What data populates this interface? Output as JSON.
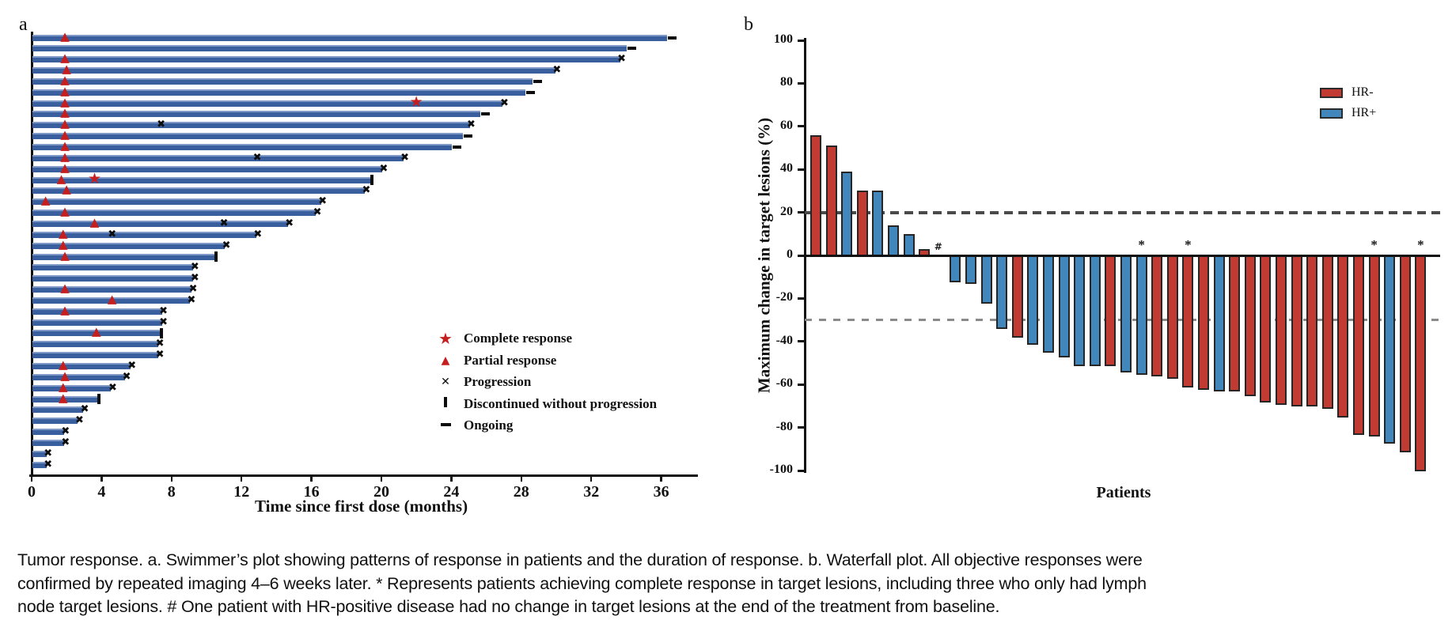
{
  "figure": {
    "panel_a_label": "a",
    "panel_b_label": "b",
    "caption_lines": [
      "Tumor response. a. Swimmer’s plot showing patterns of response in patients and the duration of response. b. Waterfall plot. All objective responses were",
      "confirmed by repeated imaging 4–6 weeks later. * Represents patients achieving complete response in target lesions, including three who only had lymph",
      "node target lesions. # One patient with HR-positive disease had no change in target lesions at the end of the treatment from baseline."
    ]
  },
  "colors": {
    "swimmer_bar": "#3a5f9e",
    "hr_negative": "#c23b32",
    "hr_positive": "#4287bb",
    "marker_red": "#c41e1e",
    "marker_black": "#0d0d0d",
    "dash_plus20": "#4a4a4a",
    "dash_minus30": "#8a8a8a"
  },
  "chart_data": [
    {
      "id": "swimmer",
      "type": "bar",
      "orientation": "horizontal",
      "xlabel": "Time since first dose (months)",
      "x_ticks": [
        0,
        4,
        8,
        12,
        16,
        20,
        24,
        28,
        32,
        36
      ],
      "xlim": [
        0,
        38
      ],
      "grid": false,
      "legend_position": "right-middle",
      "legend": [
        {
          "symbol": "star",
          "label": "Complete response"
        },
        {
          "symbol": "triangle",
          "label": "Partial response"
        },
        {
          "symbol": "x",
          "label": "Progression"
        },
        {
          "symbol": "bar",
          "label": "Discontinued without progression"
        },
        {
          "symbol": "dash",
          "label": "Ongoing"
        }
      ],
      "patients": [
        {
          "duration_months": 36.3,
          "end": "ongoing",
          "partial_response_at": [
            1.9
          ]
        },
        {
          "duration_months": 34.0,
          "end": "ongoing"
        },
        {
          "duration_months": 33.6,
          "end": "progression",
          "partial_response_at": [
            1.9
          ]
        },
        {
          "duration_months": 29.9,
          "end": "progression",
          "partial_response_at": [
            2.0
          ]
        },
        {
          "duration_months": 28.6,
          "end": "ongoing",
          "partial_response_at": [
            1.9
          ]
        },
        {
          "duration_months": 28.2,
          "end": "ongoing",
          "partial_response_at": [
            1.9
          ]
        },
        {
          "duration_months": 26.9,
          "end": "progression",
          "partial_response_at": [
            1.9
          ],
          "complete_response_at": [
            22.0
          ]
        },
        {
          "duration_months": 25.6,
          "end": "ongoing",
          "partial_response_at": [
            1.9
          ]
        },
        {
          "duration_months": 25.0,
          "end": "progression",
          "partial_response_at": [
            1.9
          ],
          "progression_at": [
            7.4
          ]
        },
        {
          "duration_months": 24.6,
          "end": "ongoing",
          "partial_response_at": [
            1.9
          ]
        },
        {
          "duration_months": 24.0,
          "end": "ongoing",
          "partial_response_at": [
            1.9
          ]
        },
        {
          "duration_months": 21.2,
          "end": "progression",
          "partial_response_at": [
            1.9
          ],
          "progression_at": [
            12.9
          ]
        },
        {
          "duration_months": 20.0,
          "end": "progression",
          "partial_response_at": [
            1.9
          ]
        },
        {
          "duration_months": 19.3,
          "end": "discontinued",
          "partial_response_at": [
            1.7
          ],
          "complete_response_at": [
            3.6
          ]
        },
        {
          "duration_months": 19.0,
          "end": "progression",
          "partial_response_at": [
            2.0
          ]
        },
        {
          "duration_months": 16.5,
          "end": "progression",
          "partial_response_at": [
            0.8
          ]
        },
        {
          "duration_months": 16.2,
          "end": "progression",
          "partial_response_at": [
            1.9
          ]
        },
        {
          "duration_months": 14.6,
          "end": "progression",
          "partial_response_at": [
            3.6
          ],
          "progression_at": [
            11.0
          ]
        },
        {
          "duration_months": 12.8,
          "end": "progression",
          "partial_response_at": [
            1.8
          ],
          "progression_at": [
            4.6
          ]
        },
        {
          "duration_months": 11.0,
          "end": "progression",
          "partial_response_at": [
            1.8
          ]
        },
        {
          "duration_months": 10.4,
          "end": "discontinued",
          "partial_response_at": [
            1.9
          ]
        },
        {
          "duration_months": 9.2,
          "end": "progression"
        },
        {
          "duration_months": 9.2,
          "end": "progression"
        },
        {
          "duration_months": 9.1,
          "end": "progression",
          "partial_response_at": [
            1.9
          ]
        },
        {
          "duration_months": 9.0,
          "end": "progression",
          "partial_response_at": [
            4.6
          ]
        },
        {
          "duration_months": 7.4,
          "end": "progression",
          "partial_response_at": [
            1.9
          ]
        },
        {
          "duration_months": 7.4,
          "end": "progression"
        },
        {
          "duration_months": 7.3,
          "end": "discontinued",
          "partial_response_at": [
            3.7
          ]
        },
        {
          "duration_months": 7.2,
          "end": "progression"
        },
        {
          "duration_months": 7.2,
          "end": "progression"
        },
        {
          "duration_months": 5.6,
          "end": "progression",
          "partial_response_at": [
            1.8
          ]
        },
        {
          "duration_months": 5.3,
          "end": "progression",
          "partial_response_at": [
            1.9
          ]
        },
        {
          "duration_months": 4.5,
          "end": "progression",
          "partial_response_at": [
            1.8
          ]
        },
        {
          "duration_months": 3.7,
          "end": "discontinued",
          "partial_response_at": [
            1.8
          ]
        },
        {
          "duration_months": 2.9,
          "end": "progression"
        },
        {
          "duration_months": 2.6,
          "end": "progression"
        },
        {
          "duration_months": 1.8,
          "end": "progression"
        },
        {
          "duration_months": 1.8,
          "end": "progression"
        },
        {
          "duration_months": 0.8,
          "end": "progression"
        },
        {
          "duration_months": 0.8,
          "end": "progression"
        }
      ]
    },
    {
      "id": "waterfall",
      "type": "bar",
      "ylabel": "Maximum change in target lesions (%)",
      "xlabel": "Patients",
      "ylim": [
        -100,
        100
      ],
      "y_ticks": [
        100,
        80,
        60,
        40,
        20,
        0,
        -20,
        -40,
        -60,
        -80,
        -100
      ],
      "reference_lines_pct": [
        20,
        -30
      ],
      "grid": false,
      "legend_position": "top-right",
      "legend": [
        {
          "label": "HR-",
          "color_key": "hr_negative"
        },
        {
          "label": "HR+",
          "color_key": "hr_positive"
        }
      ],
      "values": [
        {
          "change_pct": 56,
          "hr": "HR-"
        },
        {
          "change_pct": 51,
          "hr": "HR-"
        },
        {
          "change_pct": 39,
          "hr": "HR+"
        },
        {
          "change_pct": 30,
          "hr": "HR-"
        },
        {
          "change_pct": 30,
          "hr": "HR+"
        },
        {
          "change_pct": 14,
          "hr": "HR+"
        },
        {
          "change_pct": 10,
          "hr": "HR+"
        },
        {
          "change_pct": 3,
          "hr": "HR-"
        },
        {
          "change_pct": 0,
          "hr": "HR+",
          "annotation": "#"
        },
        {
          "change_pct": -12,
          "hr": "HR+"
        },
        {
          "change_pct": -13,
          "hr": "HR+"
        },
        {
          "change_pct": -22,
          "hr": "HR+"
        },
        {
          "change_pct": -34,
          "hr": "HR+"
        },
        {
          "change_pct": -38,
          "hr": "HR-"
        },
        {
          "change_pct": -41,
          "hr": "HR+"
        },
        {
          "change_pct": -45,
          "hr": "HR+"
        },
        {
          "change_pct": -47,
          "hr": "HR+"
        },
        {
          "change_pct": -51,
          "hr": "HR+"
        },
        {
          "change_pct": -51,
          "hr": "HR+"
        },
        {
          "change_pct": -51,
          "hr": "HR-"
        },
        {
          "change_pct": -54,
          "hr": "HR+"
        },
        {
          "change_pct": -55,
          "hr": "HR+",
          "annotation": "*"
        },
        {
          "change_pct": -56,
          "hr": "HR-"
        },
        {
          "change_pct": -57,
          "hr": "HR-"
        },
        {
          "change_pct": -61,
          "hr": "HR-",
          "annotation": "*"
        },
        {
          "change_pct": -62,
          "hr": "HR-"
        },
        {
          "change_pct": -63,
          "hr": "HR+"
        },
        {
          "change_pct": -63,
          "hr": "HR-"
        },
        {
          "change_pct": -65,
          "hr": "HR-"
        },
        {
          "change_pct": -68,
          "hr": "HR-"
        },
        {
          "change_pct": -69,
          "hr": "HR-"
        },
        {
          "change_pct": -70,
          "hr": "HR-"
        },
        {
          "change_pct": -70,
          "hr": "HR-"
        },
        {
          "change_pct": -71,
          "hr": "HR-"
        },
        {
          "change_pct": -75,
          "hr": "HR-"
        },
        {
          "change_pct": -83,
          "hr": "HR-"
        },
        {
          "change_pct": -84,
          "hr": "HR-",
          "annotation": "*"
        },
        {
          "change_pct": -87,
          "hr": "HR+"
        },
        {
          "change_pct": -91,
          "hr": "HR-"
        },
        {
          "change_pct": -100,
          "hr": "HR-",
          "annotation": "*"
        }
      ]
    }
  ]
}
